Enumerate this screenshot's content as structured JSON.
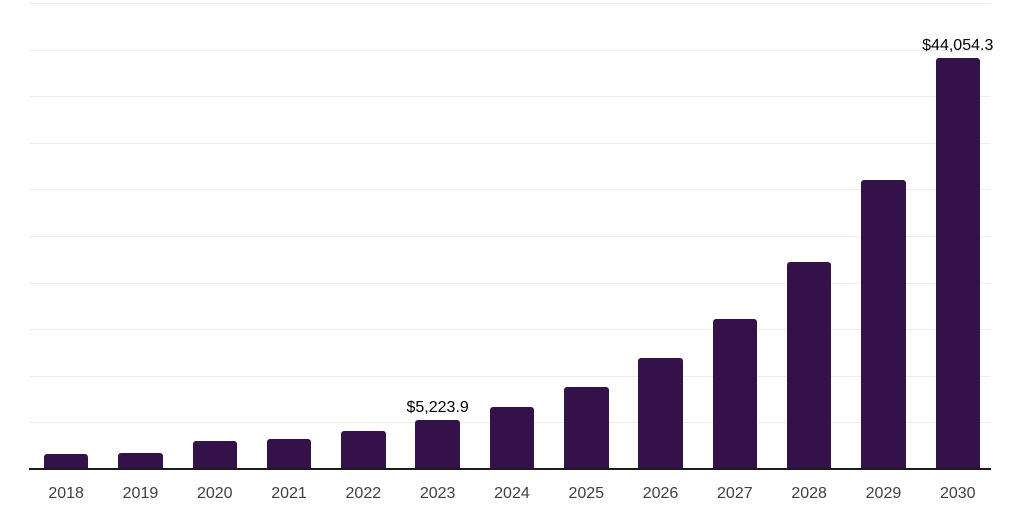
{
  "chart_data": {
    "type": "bar",
    "title": "",
    "xlabel": "",
    "ylabel": "",
    "categories": [
      "2018",
      "2019",
      "2020",
      "2021",
      "2022",
      "2023",
      "2024",
      "2025",
      "2026",
      "2027",
      "2028",
      "2029",
      "2030"
    ],
    "values": [
      1630,
      1770,
      3020,
      3240,
      4050,
      5223.9,
      6620,
      8760,
      11900,
      16090,
      22200,
      31050,
      44054.3
    ],
    "value_labels": [
      {
        "category": "2023",
        "text": "$5,223.9"
      },
      {
        "category": "2030",
        "text": "$44,054.3"
      }
    ],
    "ylim": [
      0,
      50000
    ],
    "gridline_step": 5000,
    "grid": "horizontal-only",
    "legend": "none",
    "y_tick_labels_visible": false,
    "bar_color": "#341249",
    "axis_color": "#1c1c1c",
    "gridline_color": "#ededed",
    "value_label_color": "#000000",
    "tick_label_color": "#404040",
    "background_color": "#ffffff"
  }
}
